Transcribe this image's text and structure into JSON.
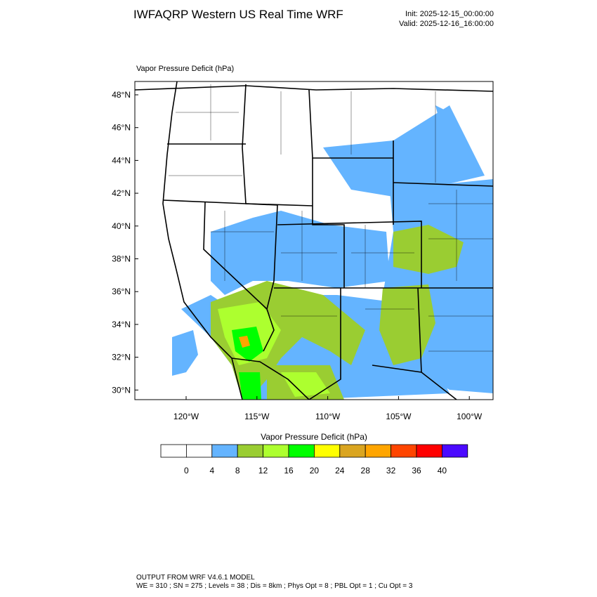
{
  "header": {
    "title": "IWFAQRP Western US Real Time WRF",
    "init": "Init: 2025-12-15_00:00:00",
    "valid": "Valid: 2025-12-16_16:00:00"
  },
  "map": {
    "subtitle": "Vapor Pressure Deficit   (hPa)",
    "lat_labels": [
      "48°N",
      "46°N",
      "44°N",
      "42°N",
      "40°N",
      "38°N",
      "36°N",
      "34°N",
      "32°N",
      "30°N"
    ],
    "lon_labels": [
      "120°W",
      "115°W",
      "110°W",
      "105°W",
      "100°W"
    ]
  },
  "colorbar": {
    "title": "Vapor Pressure Deficit  (hPa)",
    "colors": [
      "#ffffff",
      "#ffffff",
      "#64b4ff",
      "#9acd32",
      "#adff2f",
      "#00ff00",
      "#ffff00",
      "#daa520",
      "#ffa500",
      "#ff4500",
      "#ff0000",
      "#4b0aff"
    ],
    "levels": [
      0,
      4,
      8,
      12,
      16,
      20,
      24,
      28,
      32,
      36,
      40
    ]
  },
  "footer": {
    "line1": "OUTPUT FROM WRF V4.6.1 MODEL",
    "line2": "WE = 310 ; SN = 275 ; Levels = 38 ; Dis = 8km ; Phys Opt = 8 ; PBL Opt = 1 ; Cu Opt = 3"
  }
}
